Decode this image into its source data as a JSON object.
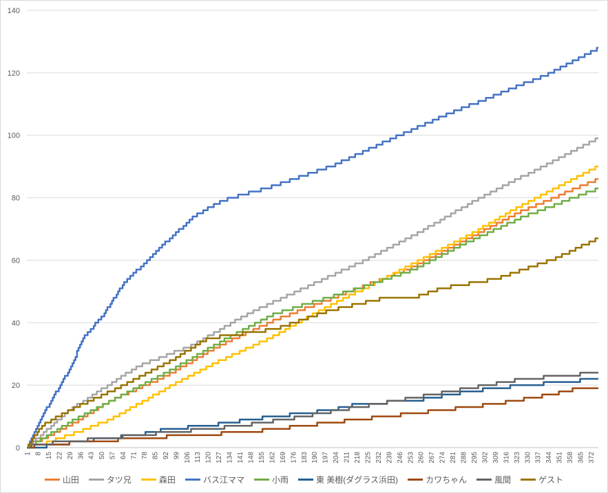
{
  "chart_data": {
    "type": "line",
    "title": "",
    "xlabel": "",
    "ylabel": "",
    "ylim": [
      0,
      140
    ],
    "yticks": [
      0,
      20,
      40,
      60,
      80,
      100,
      120,
      140
    ],
    "xlim": [
      1,
      377
    ],
    "xtick_step": 7,
    "grid": true,
    "legend_placement": "bottom",
    "series": [
      {
        "name": "山田",
        "color": "#ED7D31",
        "points": [
          [
            1,
            0
          ],
          [
            29,
            7
          ],
          [
            56,
            15
          ],
          [
            93,
            23
          ],
          [
            129,
            33
          ],
          [
            165,
            41
          ],
          [
            219,
            51
          ],
          [
            256,
            58
          ],
          [
            292,
            67
          ],
          [
            328,
            76
          ],
          [
            377,
            86
          ]
        ]
      },
      {
        "name": "タツ兄",
        "color": "#A5A5A5",
        "points": [
          [
            1,
            0
          ],
          [
            29,
            12
          ],
          [
            74,
            26
          ],
          [
            111,
            33
          ],
          [
            147,
            43
          ],
          [
            183,
            51
          ],
          [
            219,
            59
          ],
          [
            256,
            68
          ],
          [
            292,
            78
          ],
          [
            328,
            87
          ],
          [
            377,
            99
          ]
        ]
      },
      {
        "name": "森田",
        "color": "#FFC000",
        "points": [
          [
            1,
            0
          ],
          [
            11,
            1
          ],
          [
            29,
            4
          ],
          [
            56,
            9
          ],
          [
            93,
            19
          ],
          [
            129,
            28
          ],
          [
            165,
            36
          ],
          [
            183,
            41
          ],
          [
            219,
            50
          ],
          [
            256,
            59
          ],
          [
            292,
            68
          ],
          [
            328,
            78
          ],
          [
            377,
            90
          ]
        ]
      },
      {
        "name": "バス江ママ",
        "color": "#4472C4",
        "points": [
          [
            1,
            0
          ],
          [
            11,
            10
          ],
          [
            29,
            25
          ],
          [
            38,
            35
          ],
          [
            52,
            43
          ],
          [
            65,
            53
          ],
          [
            74,
            57
          ],
          [
            93,
            66
          ],
          [
            111,
            74
          ],
          [
            129,
            79
          ],
          [
            165,
            84
          ],
          [
            201,
            90
          ],
          [
            237,
            98
          ],
          [
            274,
            106
          ],
          [
            310,
            113
          ],
          [
            346,
            120
          ],
          [
            377,
            128
          ]
        ]
      },
      {
        "name": "小雨",
        "color": "#70AD47",
        "points": [
          [
            1,
            0
          ],
          [
            29,
            8
          ],
          [
            56,
            15
          ],
          [
            93,
            24
          ],
          [
            129,
            34
          ],
          [
            165,
            43
          ],
          [
            219,
            51
          ],
          [
            256,
            57
          ],
          [
            292,
            66
          ],
          [
            328,
            74
          ],
          [
            377,
            83
          ]
        ]
      },
      {
        "name": "東 美樹(ダグラス浜田)",
        "color": "#255E91",
        "points": [
          [
            1,
            0
          ],
          [
            6,
            0
          ],
          [
            52,
            3
          ],
          [
            74,
            4
          ],
          [
            93,
            6
          ],
          [
            120,
            7
          ],
          [
            147,
            9
          ],
          [
            165,
            10
          ],
          [
            201,
            12
          ],
          [
            219,
            14
          ],
          [
            256,
            15
          ],
          [
            292,
            18
          ],
          [
            328,
            20
          ],
          [
            377,
            22
          ]
        ]
      },
      {
        "name": "カワちゃん",
        "color": "#9E480E",
        "points": [
          [
            1,
            0
          ],
          [
            11,
            1
          ],
          [
            47,
            2
          ],
          [
            74,
            3
          ],
          [
            111,
            4
          ],
          [
            147,
            5
          ],
          [
            165,
            6
          ],
          [
            201,
            8
          ],
          [
            237,
            10
          ],
          [
            274,
            12
          ],
          [
            310,
            14
          ],
          [
            346,
            17
          ],
          [
            364,
            19
          ],
          [
            377,
            19
          ]
        ]
      },
      {
        "name": "風間",
        "color": "#636363",
        "points": [
          [
            1,
            0
          ],
          [
            6,
            1
          ],
          [
            52,
            3
          ],
          [
            97,
            5
          ],
          [
            142,
            7
          ],
          [
            183,
            10
          ],
          [
            219,
            13
          ],
          [
            256,
            16
          ],
          [
            292,
            19
          ],
          [
            328,
            22
          ],
          [
            377,
            24
          ]
        ]
      },
      {
        "name": "ゲスト",
        "color": "#997300",
        "points": [
          [
            1,
            0
          ],
          [
            11,
            7
          ],
          [
            29,
            12
          ],
          [
            56,
            18
          ],
          [
            93,
            27
          ],
          [
            120,
            35
          ],
          [
            165,
            38
          ],
          [
            201,
            44
          ],
          [
            237,
            48
          ],
          [
            256,
            48
          ],
          [
            274,
            51
          ],
          [
            310,
            54
          ],
          [
            346,
            60
          ],
          [
            377,
            67
          ]
        ]
      }
    ]
  }
}
